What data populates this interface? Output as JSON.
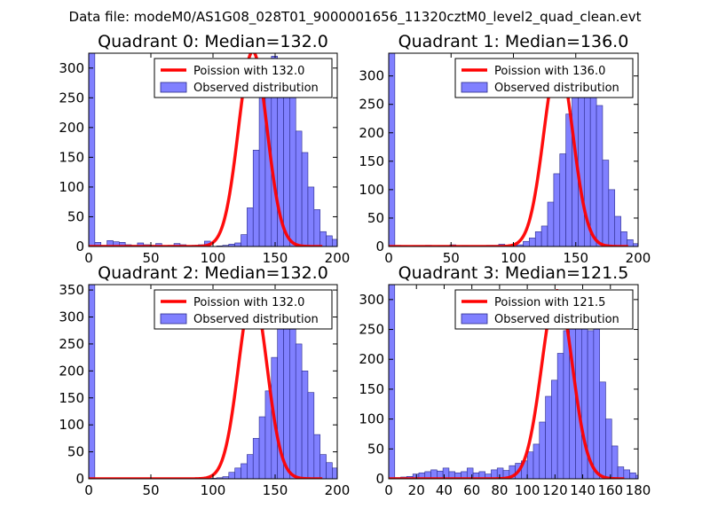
{
  "figure": {
    "suptitle": "Data file: modeM0/AS1G08_028T01_9000001656_11320cztM0_level2_quad_clean.evt"
  },
  "colors": {
    "bar_fill": "#8080ff",
    "bar_edge": "#2a2a8a",
    "curve": "#ff0000",
    "legend_edge": "#000000"
  },
  "chart_data": [
    {
      "type": "histogram",
      "title": "Quadrant 0: Median=132.0",
      "xlim": [
        0,
        200
      ],
      "ylim": [
        0,
        325
      ],
      "xticks": [
        0,
        50,
        100,
        150,
        200
      ],
      "xtick_labels": [
        "0",
        "50",
        "100",
        "150",
        "200"
      ],
      "yticks": [
        0,
        50,
        100,
        150,
        200,
        250,
        300
      ],
      "ytick_labels": [
        "0",
        "50",
        "100",
        "150",
        "200",
        "250",
        "300"
      ],
      "legend": {
        "curve_label": "Poission with 132.0",
        "bars_label": "Observed distribution",
        "position": "top-right"
      },
      "bins": {
        "start": 0,
        "width": 4.9,
        "counts": [
          325,
          7,
          2,
          10,
          8,
          7,
          3,
          2,
          6,
          3,
          2,
          5,
          1,
          2,
          5,
          3,
          1,
          2,
          3,
          9,
          0,
          1,
          2,
          4,
          6,
          20,
          65,
          162,
          267,
          296,
          320,
          292,
          290,
          306,
          194,
          158,
          100,
          62,
          25,
          18,
          12,
          5,
          3,
          1,
          0
        ]
      },
      "curve": {
        "mean": 132.0,
        "sigma": 11.49,
        "peak": 328,
        "xmin": 0,
        "xmax": 188
      }
    },
    {
      "type": "histogram",
      "title": "Quadrant 1: Median=136.0",
      "xlim": [
        0,
        200
      ],
      "ylim": [
        0,
        340
      ],
      "xticks": [
        0,
        50,
        100,
        150,
        200
      ],
      "xtick_labels": [
        "0",
        "50",
        "100",
        "150",
        "200"
      ],
      "yticks": [
        0,
        50,
        100,
        150,
        200,
        250,
        300
      ],
      "ytick_labels": [
        "0",
        "50",
        "100",
        "150",
        "200",
        "250",
        "300"
      ],
      "legend": {
        "curve_label": "Poission with 136.0",
        "bars_label": "Observed distribution",
        "position": "top-right"
      },
      "bins": {
        "start": 0,
        "width": 4.9,
        "counts": [
          340,
          2,
          1,
          0,
          1,
          1,
          2,
          0,
          1,
          1,
          3,
          0,
          1,
          0,
          0,
          1,
          2,
          2,
          4,
          1,
          3,
          3,
          9,
          15,
          26,
          36,
          78,
          128,
          163,
          233,
          290,
          280,
          325,
          308,
          248,
          152,
          100,
          53,
          26,
          12,
          5,
          2,
          1,
          0,
          0
        ]
      },
      "curve": {
        "mean": 136.0,
        "sigma": 11.66,
        "peak": 328,
        "xmin": 0,
        "xmax": 192
      }
    },
    {
      "type": "histogram",
      "title": "Quadrant 2: Median=132.0",
      "xlim": [
        0,
        200
      ],
      "ylim": [
        0,
        360
      ],
      "xticks": [
        0,
        50,
        100,
        150,
        200
      ],
      "xtick_labels": [
        "0",
        "50",
        "100",
        "150",
        "200"
      ],
      "yticks": [
        0,
        50,
        100,
        150,
        200,
        250,
        300,
        350
      ],
      "ytick_labels": [
        "0",
        "50",
        "100",
        "150",
        "200",
        "250",
        "300",
        "350"
      ],
      "legend": {
        "curve_label": "Poission with 132.0",
        "bars_label": "Observed distribution",
        "position": "top-right"
      },
      "bins": {
        "start": 0,
        "width": 4.9,
        "counts": [
          360,
          0,
          0,
          0,
          0,
          0,
          0,
          0,
          0,
          0,
          0,
          0,
          0,
          0,
          0,
          0,
          0,
          0,
          0,
          0,
          1,
          2,
          4,
          12,
          20,
          28,
          45,
          75,
          115,
          163,
          225,
          300,
          345,
          342,
          250,
          200,
          160,
          82,
          45,
          30,
          20,
          12,
          5,
          2,
          0
        ]
      },
      "curve": {
        "mean": 132.0,
        "sigma": 11.49,
        "peak": 345,
        "xmin": 0,
        "xmax": 188
      }
    },
    {
      "type": "histogram",
      "title": "Quadrant 3: Median=121.5",
      "xlim": [
        0,
        180
      ],
      "ylim": [
        0,
        325
      ],
      "xticks": [
        0,
        20,
        40,
        60,
        80,
        100,
        120,
        140,
        160,
        180
      ],
      "xtick_labels": [
        "0",
        "20",
        "40",
        "60",
        "80",
        "100",
        "120",
        "140",
        "160",
        "180"
      ],
      "yticks": [
        0,
        50,
        100,
        150,
        200,
        250,
        300
      ],
      "ytick_labels": [
        "0",
        "50",
        "100",
        "150",
        "200",
        "250",
        "300"
      ],
      "legend": {
        "curve_label": "Poission with 121.5",
        "bars_label": "Observed distribution",
        "position": "top-right"
      },
      "bins": {
        "start": 0,
        "width": 4.35,
        "counts": [
          325,
          2,
          3,
          4,
          8,
          10,
          12,
          15,
          13,
          18,
          12,
          10,
          12,
          18,
          10,
          12,
          8,
          15,
          18,
          14,
          22,
          26,
          30,
          45,
          58,
          95,
          138,
          165,
          210,
          248,
          272,
          285,
          262,
          248,
          285,
          162,
          100,
          55,
          20,
          15,
          10,
          6,
          5,
          0
        ]
      },
      "curve": {
        "mean": 121.5,
        "sigma": 11.02,
        "peak": 315,
        "xmin": 0,
        "xmax": 170
      }
    }
  ]
}
